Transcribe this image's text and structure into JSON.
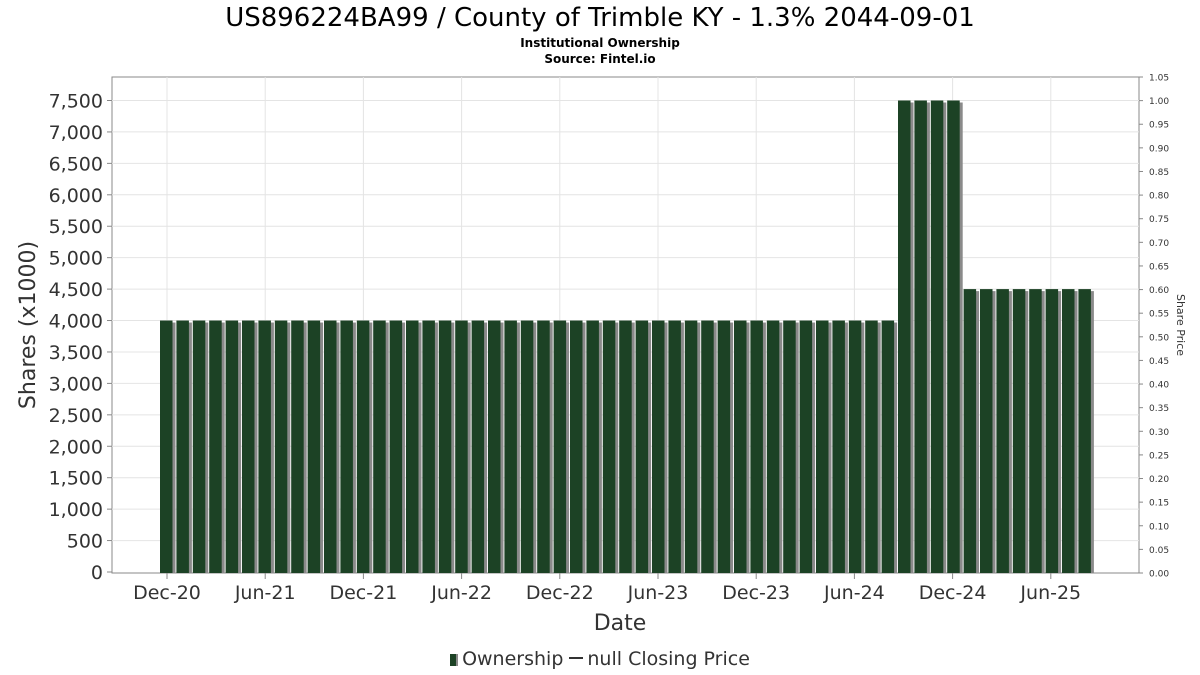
{
  "chart_data": {
    "type": "bar",
    "title": "US896224BA99 / County of Trimble KY - 1.3% 2044-09-01",
    "subtitle_1": "Institutional Ownership",
    "subtitle_2": "Source: Fintel.io",
    "xlabel": "Date",
    "ylabel": "Shares (x1000)",
    "y2label": "Share Price",
    "ylim": [
      0,
      7800
    ],
    "y2lim": [
      0,
      1.05
    ],
    "yticks": [
      "0",
      "500",
      "1,000",
      "1,500",
      "2,000",
      "2,500",
      "3,000",
      "3,500",
      "4,000",
      "4,500",
      "5,000",
      "5,500",
      "6,000",
      "6,500",
      "7,000",
      "7,500"
    ],
    "y2ticks": [
      "0.00",
      "0.05",
      "0.10",
      "0.15",
      "0.20",
      "0.25",
      "0.30",
      "0.35",
      "0.40",
      "0.45",
      "0.50",
      "0.55",
      "0.60",
      "0.65",
      "0.70",
      "0.75",
      "0.80",
      "0.85",
      "0.90",
      "0.95",
      "1.00",
      "1.05"
    ],
    "xticks": [
      "Dec-20",
      "Jun-21",
      "Dec-21",
      "Jun-22",
      "Dec-22",
      "Jun-23",
      "Dec-23",
      "Jun-24",
      "Dec-24",
      "Jun-25"
    ],
    "bar_color": "#1c4225",
    "shadow_color": "#8a8a8a",
    "grid": true,
    "legend_position": "bottom",
    "series": [
      {
        "name": "Ownership",
        "values": [
          4000,
          4000,
          4000,
          4000,
          4000,
          4000,
          4000,
          4000,
          4000,
          4000,
          4000,
          4000,
          4000,
          4000,
          4000,
          4000,
          4000,
          4000,
          4000,
          4000,
          4000,
          4000,
          4000,
          4000,
          4000,
          4000,
          4000,
          4000,
          4000,
          4000,
          4000,
          4000,
          4000,
          4000,
          4000,
          4000,
          4000,
          4000,
          4000,
          4000,
          4000,
          4000,
          4000,
          4000,
          4000,
          7500,
          7500,
          7500,
          7500,
          4500,
          4500,
          4500,
          4500,
          4500,
          4500,
          4500,
          4500
        ]
      }
    ]
  },
  "legend": {
    "ownership_label": "Ownership",
    "price_label": "null Closing Price"
  }
}
